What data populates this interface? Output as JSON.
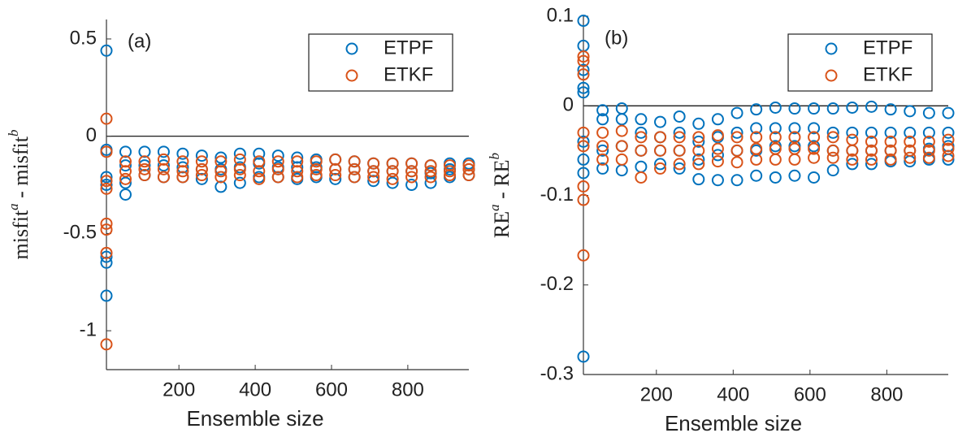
{
  "chart_data": [
    {
      "type": "scatter",
      "annotation": "(a)",
      "xlabel": "Ensemble size",
      "ylabel": [
        "misfit",
        "a",
        " - misfit",
        "b"
      ],
      "xlim": [
        10,
        960
      ],
      "ylim": [
        -1.2,
        0.6
      ],
      "xticks": [
        200,
        400,
        600,
        800
      ],
      "yticks": [
        0.5,
        0,
        -0.5,
        -1
      ],
      "legend": "northeast",
      "zero_line": true,
      "series": [
        {
          "name": "ETPF",
          "color": "#0072bd",
          "x": [
            10,
            10,
            10,
            10,
            10,
            10,
            10,
            60,
            60,
            60,
            60,
            110,
            110,
            110,
            160,
            160,
            160,
            210,
            210,
            210,
            260,
            260,
            260,
            310,
            310,
            310,
            360,
            360,
            360,
            410,
            410,
            410,
            460,
            460,
            460,
            510,
            510,
            510,
            560,
            560,
            560,
            610,
            610,
            610,
            660,
            660,
            660,
            710,
            710,
            710,
            760,
            760,
            760,
            810,
            810,
            810,
            860,
            860,
            860,
            910,
            910,
            910,
            960,
            960,
            960
          ],
          "values": [
            0.44,
            -0.07,
            -0.21,
            -0.25,
            -0.62,
            -0.65,
            -0.82,
            -0.08,
            -0.15,
            -0.24,
            -0.3,
            -0.08,
            -0.15,
            -0.2,
            -0.08,
            -0.15,
            -0.21,
            -0.09,
            -0.16,
            -0.21,
            -0.1,
            -0.17,
            -0.22,
            -0.11,
            -0.17,
            -0.26,
            -0.09,
            -0.16,
            -0.24,
            -0.09,
            -0.14,
            -0.21,
            -0.1,
            -0.16,
            -0.21,
            -0.11,
            -0.16,
            -0.22,
            -0.12,
            -0.16,
            -0.21,
            -0.12,
            -0.17,
            -0.22,
            -0.13,
            -0.17,
            -0.21,
            -0.14,
            -0.18,
            -0.23,
            -0.14,
            -0.18,
            -0.24,
            -0.14,
            -0.18,
            -0.25,
            -0.15,
            -0.19,
            -0.24,
            -0.14,
            -0.17,
            -0.21,
            -0.14,
            -0.17,
            -0.2
          ]
        },
        {
          "name": "ETKF",
          "color": "#d95319",
          "x": [
            10,
            10,
            10,
            10,
            10,
            10,
            10,
            10,
            60,
            60,
            60,
            110,
            110,
            110,
            160,
            160,
            160,
            210,
            210,
            210,
            260,
            260,
            260,
            310,
            310,
            310,
            360,
            360,
            360,
            410,
            410,
            410,
            460,
            460,
            460,
            510,
            510,
            510,
            560,
            560,
            560,
            610,
            610,
            610,
            660,
            660,
            660,
            710,
            710,
            710,
            760,
            760,
            760,
            810,
            810,
            810,
            860,
            860,
            860,
            910,
            910,
            910,
            960,
            960,
            960
          ],
          "values": [
            0.09,
            -0.08,
            -0.23,
            -0.27,
            -0.45,
            -0.48,
            -0.6,
            -1.07,
            -0.13,
            -0.18,
            -0.22,
            -0.13,
            -0.17,
            -0.2,
            -0.12,
            -0.17,
            -0.21,
            -0.13,
            -0.18,
            -0.21,
            -0.13,
            -0.17,
            -0.2,
            -0.13,
            -0.18,
            -0.21,
            -0.12,
            -0.17,
            -0.2,
            -0.13,
            -0.18,
            -0.22,
            -0.13,
            -0.17,
            -0.21,
            -0.13,
            -0.18,
            -0.21,
            -0.13,
            -0.17,
            -0.2,
            -0.12,
            -0.17,
            -0.2,
            -0.13,
            -0.17,
            -0.21,
            -0.14,
            -0.18,
            -0.21,
            -0.14,
            -0.18,
            -0.22,
            -0.14,
            -0.18,
            -0.21,
            -0.15,
            -0.18,
            -0.21,
            -0.15,
            -0.18,
            -0.2,
            -0.15,
            -0.17,
            -0.2
          ]
        }
      ]
    },
    {
      "type": "scatter",
      "annotation": "(b)",
      "xlabel": "Ensemble size",
      "ylabel": [
        "RE",
        "a",
        " - RE",
        "b"
      ],
      "xlim": [
        10,
        960
      ],
      "ylim": [
        -0.3,
        0.1
      ],
      "xticks": [
        200,
        400,
        600,
        800
      ],
      "yticks": [
        0.1,
        0,
        -0.1,
        -0.2,
        -0.3
      ],
      "legend": "northeast",
      "zero_line": true,
      "series": [
        {
          "name": "ETPF",
          "color": "#0072bd",
          "x": [
            10,
            10,
            10,
            10,
            10,
            10,
            10,
            10,
            10,
            60,
            60,
            60,
            60,
            110,
            110,
            110,
            110,
            160,
            160,
            160,
            160,
            210,
            210,
            210,
            210,
            260,
            260,
            260,
            260,
            310,
            310,
            310,
            310,
            360,
            360,
            360,
            360,
            410,
            410,
            410,
            410,
            460,
            460,
            460,
            460,
            510,
            510,
            510,
            510,
            560,
            560,
            560,
            560,
            610,
            610,
            610,
            610,
            660,
            660,
            660,
            660,
            710,
            710,
            710,
            710,
            760,
            760,
            760,
            760,
            810,
            810,
            810,
            810,
            860,
            860,
            860,
            860,
            910,
            910,
            910,
            910,
            960,
            960,
            960,
            960
          ],
          "values": [
            0.095,
            0.067,
            0.04,
            0.02,
            0.015,
            -0.04,
            -0.06,
            -0.075,
            -0.28,
            -0.005,
            -0.015,
            -0.05,
            -0.07,
            -0.003,
            -0.015,
            -0.045,
            -0.072,
            -0.015,
            -0.03,
            -0.05,
            -0.068,
            -0.018,
            -0.035,
            -0.05,
            -0.065,
            -0.012,
            -0.03,
            -0.05,
            -0.07,
            -0.02,
            -0.04,
            -0.06,
            -0.082,
            -0.015,
            -0.035,
            -0.055,
            -0.083,
            -0.008,
            -0.03,
            -0.05,
            -0.083,
            -0.004,
            -0.025,
            -0.05,
            -0.078,
            -0.002,
            -0.025,
            -0.045,
            -0.08,
            -0.003,
            -0.025,
            -0.045,
            -0.078,
            -0.003,
            -0.025,
            -0.045,
            -0.08,
            -0.003,
            -0.03,
            -0.05,
            -0.072,
            -0.002,
            -0.03,
            -0.05,
            -0.065,
            -0.001,
            -0.03,
            -0.05,
            -0.065,
            -0.004,
            -0.03,
            -0.05,
            -0.062,
            -0.006,
            -0.03,
            -0.05,
            -0.062,
            -0.008,
            -0.03,
            -0.048,
            -0.06,
            -0.008,
            -0.03,
            -0.045,
            -0.06
          ]
        },
        {
          "name": "ETKF",
          "color": "#d95319",
          "x": [
            10,
            10,
            10,
            10,
            10,
            10,
            10,
            10,
            60,
            60,
            60,
            110,
            110,
            110,
            160,
            160,
            160,
            210,
            210,
            210,
            260,
            260,
            260,
            310,
            310,
            310,
            360,
            360,
            360,
            410,
            410,
            410,
            460,
            460,
            460,
            510,
            510,
            510,
            560,
            560,
            560,
            610,
            610,
            610,
            660,
            660,
            660,
            710,
            710,
            710,
            760,
            760,
            760,
            810,
            810,
            810,
            860,
            860,
            860,
            910,
            910,
            910,
            960,
            960,
            960
          ],
          "values": [
            0.055,
            0.05,
            0.035,
            -0.03,
            -0.045,
            -0.09,
            -0.105,
            -0.167,
            -0.03,
            -0.045,
            -0.06,
            -0.028,
            -0.045,
            -0.06,
            -0.035,
            -0.05,
            -0.08,
            -0.035,
            -0.05,
            -0.07,
            -0.035,
            -0.05,
            -0.065,
            -0.035,
            -0.05,
            -0.065,
            -0.033,
            -0.048,
            -0.062,
            -0.035,
            -0.05,
            -0.063,
            -0.035,
            -0.048,
            -0.06,
            -0.035,
            -0.048,
            -0.06,
            -0.035,
            -0.048,
            -0.06,
            -0.035,
            -0.048,
            -0.058,
            -0.035,
            -0.05,
            -0.058,
            -0.038,
            -0.05,
            -0.06,
            -0.04,
            -0.05,
            -0.06,
            -0.04,
            -0.05,
            -0.06,
            -0.04,
            -0.05,
            -0.058,
            -0.04,
            -0.05,
            -0.058,
            -0.038,
            -0.048,
            -0.056
          ]
        }
      ]
    }
  ]
}
